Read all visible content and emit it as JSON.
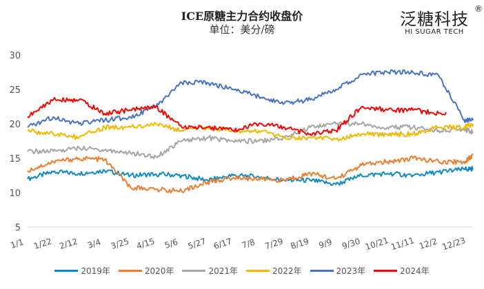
{
  "chart_data": {
    "type": "line",
    "title": "ICE原糖主力合约收盘价",
    "subtitle": "单位：美分/磅",
    "logo": {
      "cn": "泛糖科技",
      "en": "HI SUGAR TECH",
      "mark": "®"
    },
    "ylim": [
      5,
      30
    ],
    "yticks": [
      5,
      10,
      15,
      20,
      25,
      30
    ],
    "xtick_labels": [
      "1/1",
      "1/22",
      "2/12",
      "3/4",
      "3/25",
      "4/15",
      "5/6",
      "5/27",
      "6/17",
      "7/8",
      "7/29",
      "8/19",
      "9/9",
      "9/30",
      "10/21",
      "11/11",
      "12/2",
      "12/23"
    ],
    "x": [
      "1/1",
      "1/22",
      "2/12",
      "3/4",
      "3/25",
      "4/15",
      "5/6",
      "5/27",
      "6/17",
      "7/8",
      "7/29",
      "8/19",
      "9/9",
      "9/30",
      "10/21",
      "11/11",
      "12/2",
      "12/23",
      "12/30"
    ],
    "grid": false,
    "legend_position": "bottom",
    "series": [
      {
        "name": "2019年",
        "color": "#0f8ac6",
        "values": [
          12,
          13,
          12.8,
          13.2,
          12.5,
          12.7,
          12.5,
          11.8,
          12.5,
          12.3,
          11.8,
          11.8,
          11.2,
          12.5,
          12.8,
          12.5,
          13,
          13.4,
          13.5
        ]
      },
      {
        "name": "2020年",
        "color": "#ed7d31",
        "values": [
          13.2,
          14.5,
          15,
          14.8,
          10.8,
          10.5,
          10.2,
          11.5,
          12.2,
          12,
          11.8,
          12.8,
          12,
          14,
          14.5,
          15,
          14.5,
          14.5,
          15.5
        ]
      },
      {
        "name": "2021年",
        "color": "#a5a5a5",
        "values": [
          16,
          16,
          16.5,
          16.2,
          15.8,
          15.2,
          17.5,
          18,
          17.5,
          17.5,
          18,
          19.5,
          20,
          20,
          19.5,
          19.5,
          19,
          19.2,
          18.8
        ]
      },
      {
        "name": "2022年",
        "color": "#f2b800",
        "values": [
          19,
          18.5,
          18,
          19.5,
          19.5,
          20,
          19,
          19.5,
          19,
          19,
          18,
          18,
          17.8,
          18.5,
          18.5,
          18.5,
          19.5,
          19.5,
          20
        ]
      },
      {
        "name": "2023年",
        "color": "#4472c4",
        "values": [
          19.5,
          21,
          20,
          20.5,
          21,
          22.5,
          26,
          26,
          25,
          24,
          23,
          23.5,
          25,
          27.2,
          27.5,
          27.5,
          27,
          20.5,
          20.5
        ]
      },
      {
        "name": "2024年",
        "color": "#ff0000",
        "values": [
          21,
          23.5,
          23.5,
          21.5,
          22,
          22.5,
          19.5,
          19.5,
          19,
          20,
          19.5,
          18.5,
          19,
          22.5,
          22,
          22,
          21.5,
          null,
          null
        ]
      }
    ]
  }
}
